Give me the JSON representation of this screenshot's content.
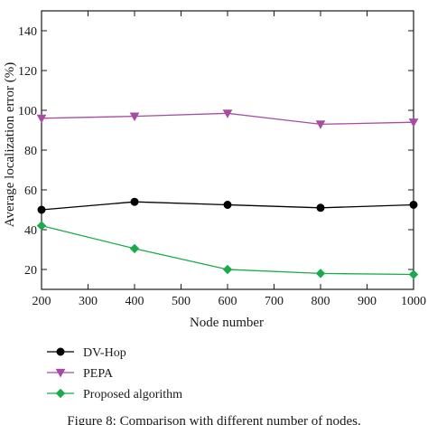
{
  "chart_data": {
    "type": "line",
    "xlabel": "Node number",
    "ylabel": "Average localization error (%)",
    "xlim": [
      200,
      1000
    ],
    "ylim": [
      10,
      150
    ],
    "x_ticks": [
      200,
      300,
      400,
      500,
      600,
      700,
      800,
      900,
      1000
    ],
    "y_ticks": [
      20,
      40,
      60,
      80,
      100,
      120,
      140
    ],
    "grid": false,
    "legend_position": "bottom-left, below axes",
    "series": [
      {
        "name": "DV-Hop",
        "color": "#000000",
        "marker": "circle",
        "x": [
          200,
          400,
          600,
          800,
          1000
        ],
        "values": [
          50,
          54,
          52.5,
          51,
          52.5
        ]
      },
      {
        "name": "PEPA",
        "color": "#a64ca6",
        "marker": "triangle-down",
        "x": [
          200,
          400,
          600,
          800,
          1000
        ],
        "values": [
          96,
          97,
          98.5,
          93,
          94
        ]
      },
      {
        "name": "Proposed algorithm",
        "color": "#1aab4b",
        "marker": "diamond",
        "x": [
          200,
          400,
          600,
          800,
          1000
        ],
        "values": [
          42,
          30.5,
          20,
          18,
          17.5
        ]
      }
    ]
  },
  "caption": "Figure 8: Comparison with different number of nodes."
}
